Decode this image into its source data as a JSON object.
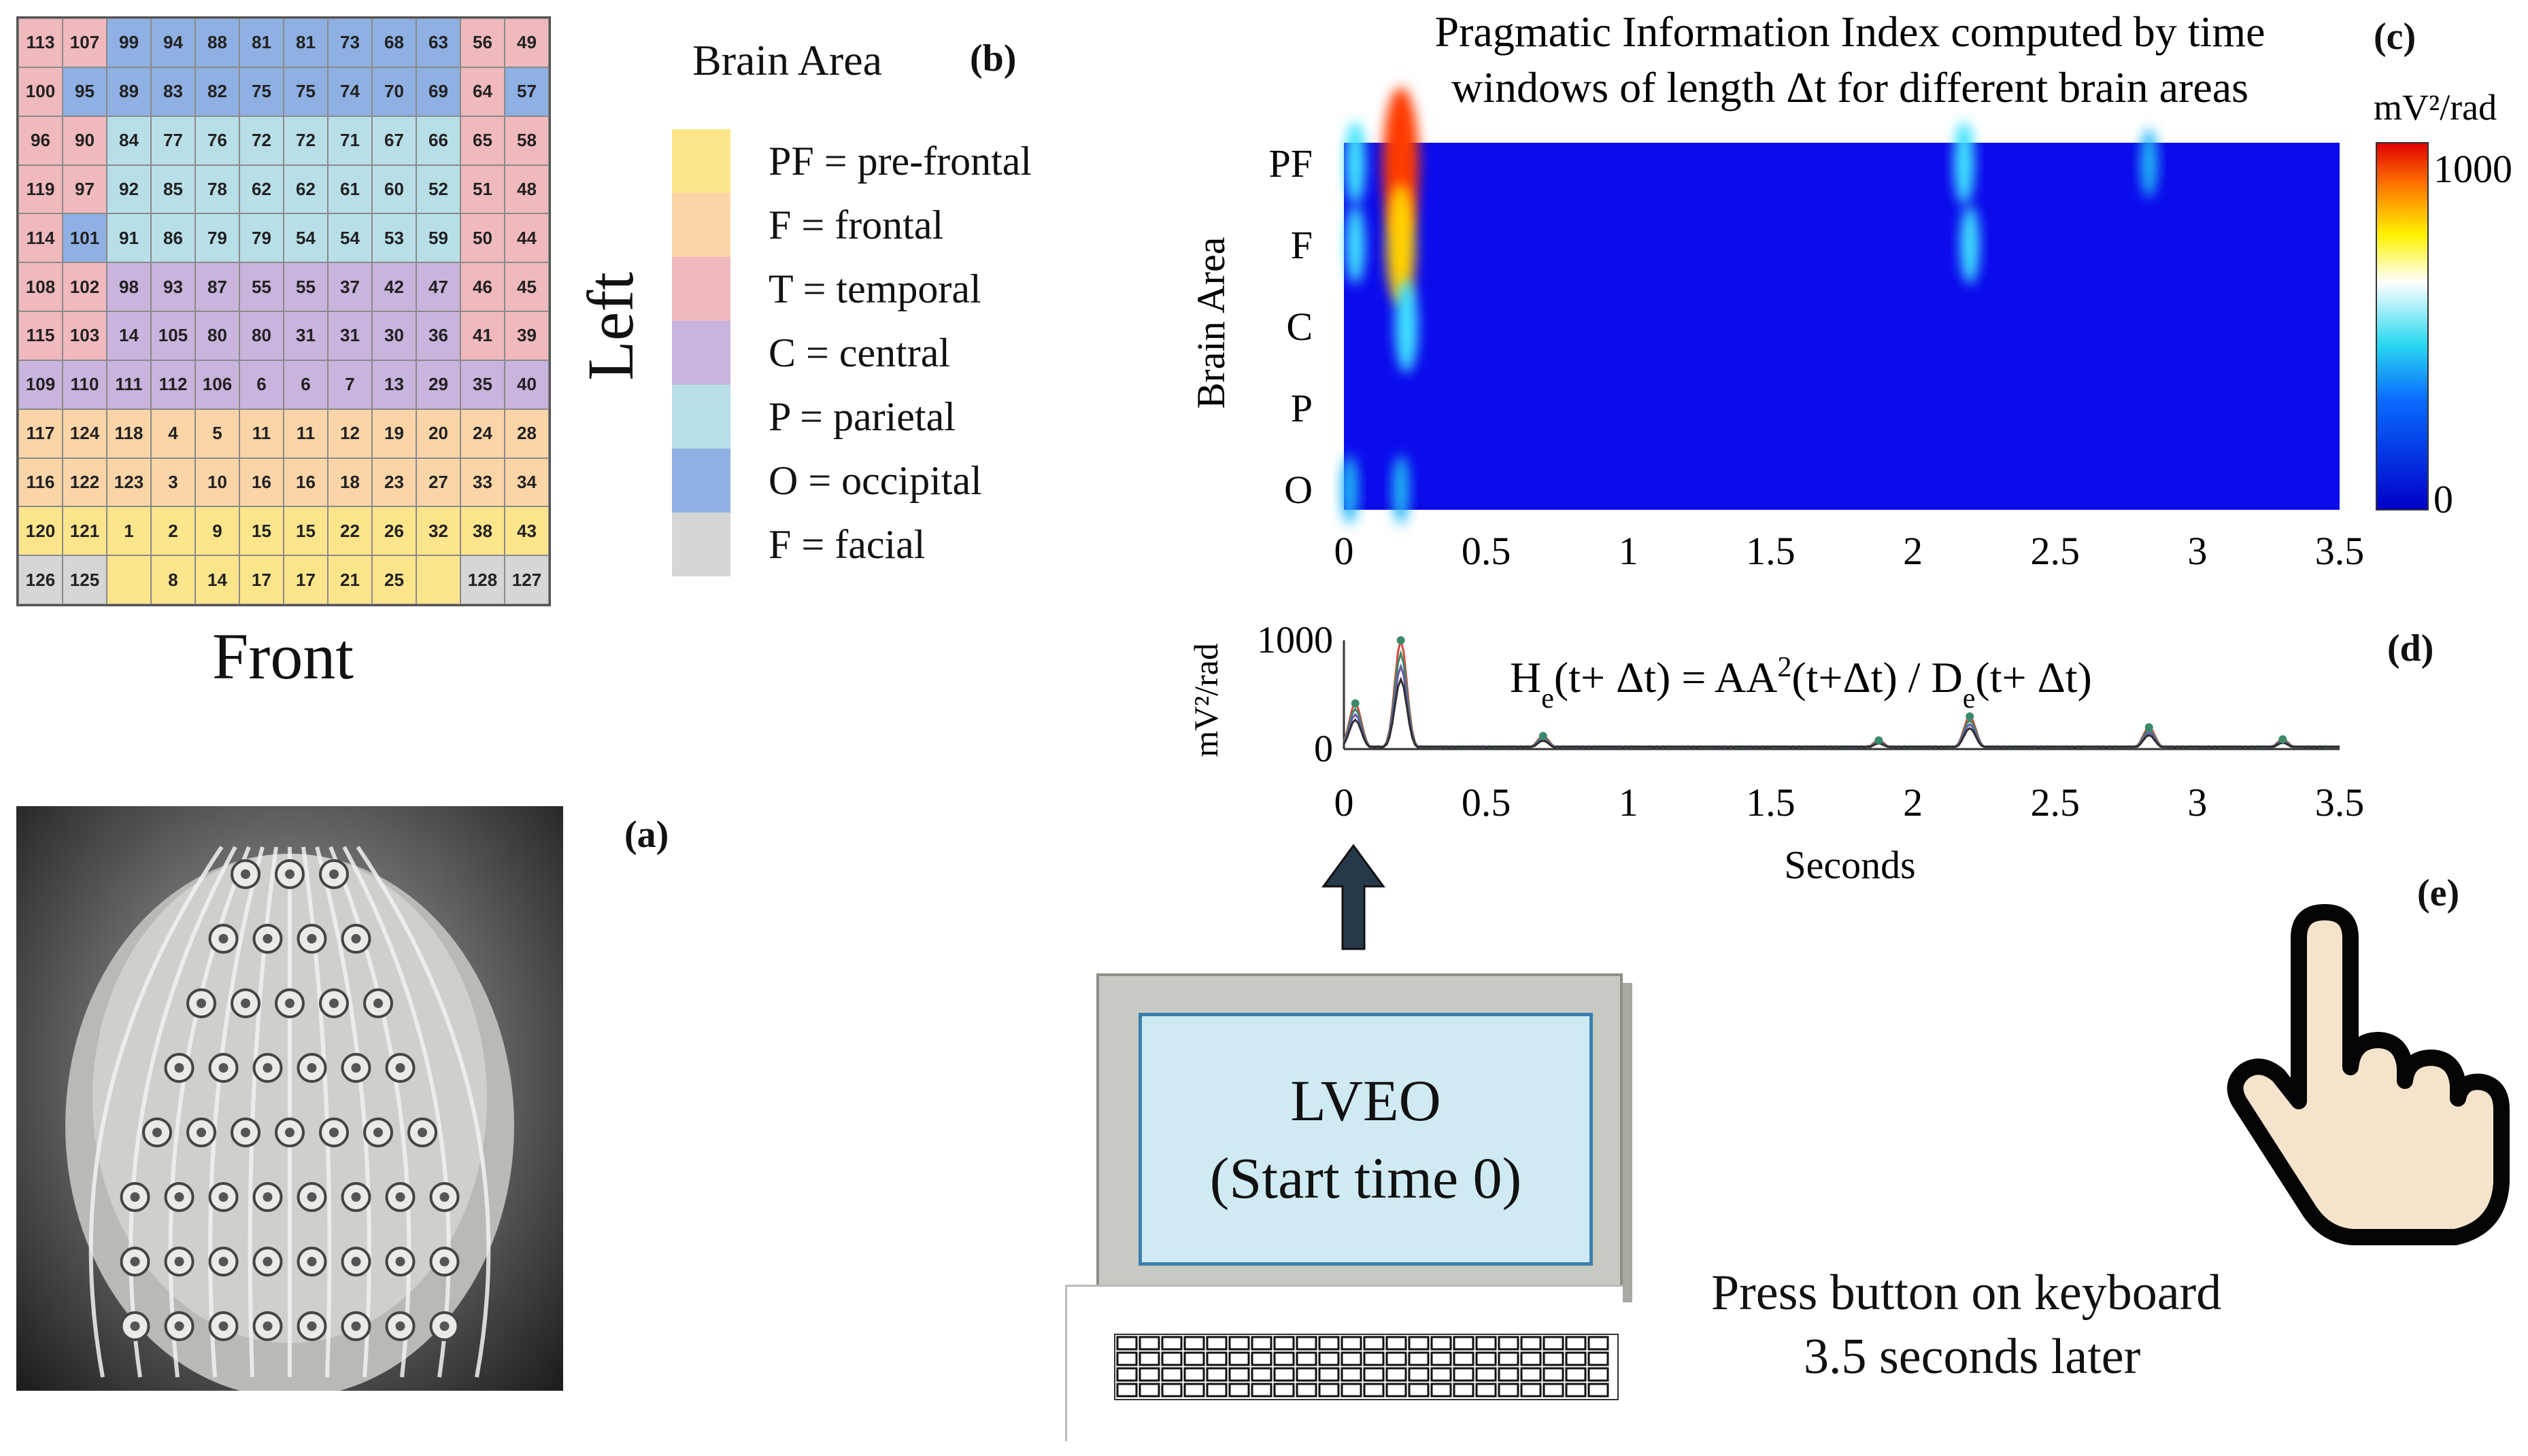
{
  "panels": {
    "a": "(a)",
    "b": "(b)",
    "c": "(c)",
    "d": "(d)",
    "e": "(e)"
  },
  "grid": {
    "side_label": "Left",
    "bottom_label": "Front",
    "colors": {
      "Y": "#fde58c",
      "O": "#fbd5a8",
      "R": "#f0b9bd",
      "V": "#c8b4dd",
      "C": "#b8dfe8",
      "B": "#8fb0e2",
      "G": "#d6d6d6",
      "W": "#ffffff"
    },
    "rows": [
      [
        "113",
        "107",
        "99",
        "94",
        "88",
        "81",
        "81",
        "73",
        "68",
        "63",
        "56",
        "49",
        ""
      ],
      [
        "100",
        "95",
        "89",
        "83",
        "82",
        "75",
        "75",
        "74",
        "70",
        "69",
        "64",
        "57",
        ""
      ],
      [
        "96",
        "90",
        "84",
        "77",
        "76",
        "72",
        "72",
        "71",
        "67",
        "66",
        "65",
        "58",
        ""
      ],
      [
        "119",
        "97",
        "92",
        "85",
        "78",
        "62",
        "62",
        "61",
        "60",
        "52",
        "51",
        "48",
        ""
      ],
      [
        "114",
        "101",
        "91",
        "86",
        "79",
        "79",
        "54",
        "54",
        "53",
        "59",
        "50",
        "44",
        ""
      ],
      [
        "108",
        "102",
        "98",
        "93",
        "87",
        "55",
        "55",
        "37",
        "42",
        "47",
        "46",
        "45",
        ""
      ],
      [
        "115",
        "103",
        "14",
        "105",
        "80",
        "80",
        "31",
        "31",
        "30",
        "36",
        "41",
        "39",
        ""
      ],
      [
        "109",
        "110",
        "111",
        "112",
        "106",
        "6",
        "6",
        "7",
        "13",
        "29",
        "35",
        "40",
        ""
      ],
      [
        "117",
        "124",
        "118",
        "4",
        "5",
        "11",
        "11",
        "12",
        "19",
        "20",
        "24",
        "28",
        ""
      ],
      [
        "116",
        "122",
        "123",
        "3",
        "10",
        "16",
        "16",
        "18",
        "23",
        "27",
        "33",
        "34",
        ""
      ],
      [
        "120",
        "121",
        "1",
        "2",
        "9",
        "15",
        "15",
        "22",
        "26",
        "32",
        "38",
        "43",
        ""
      ],
      [
        "126",
        "125",
        "",
        "8",
        "14",
        "17",
        "17",
        "21",
        "25",
        "",
        "128",
        "127",
        ""
      ]
    ],
    "color_rows": [
      "RRBBBBBBBBRR",
      "RBBBBBBBBBRB",
      "RRCCCCCCCCRR",
      "RRCCCCCCCCRR",
      "RBCCCCCCCCRR",
      "RRVVVVVVVVRR",
      "RRVVVVVVVVRR",
      "VVVVVVVVVVVV",
      "OOOOOOOOOOOO",
      "OOOOOOOOOOOO",
      "YYYYYYYYYYYY",
      "GGYYYYYYYYGG"
    ]
  },
  "legend": {
    "title": "Brain Area",
    "items": [
      {
        "text": "PF = pre-frontal",
        "color": "#fde58c"
      },
      {
        "text": "F = frontal",
        "color": "#fbd5a8"
      },
      {
        "text": "T = temporal",
        "color": "#f0b9bd"
      },
      {
        "text": "C = central",
        "color": "#c8b4dd"
      },
      {
        "text": "P = parietal",
        "color": "#b8dfe8"
      },
      {
        "text": "O = occipital",
        "color": "#8fb0e2"
      },
      {
        "text": "F = facial",
        "color": "#d6d6d6"
      }
    ]
  },
  "chart_data": [
    {
      "type": "heatmap",
      "title": "Pragmatic Information Index computed by time windows of length Δt for different brain areas",
      "title_lines": [
        "Pragmatic Information Index computed by time",
        "windows of length Δt for different brain areas"
      ],
      "ylabel": "Brain Area",
      "y_categories": [
        "PF",
        "F",
        "C",
        "P",
        "O"
      ],
      "x_ticks": [
        "0",
        "0.5",
        "1",
        "1.5",
        "2",
        "2.5",
        "3",
        "3.5"
      ],
      "xlim": [
        0,
        3.5
      ],
      "colorbar": {
        "unit": "mV²/rad",
        "max_label": "1000",
        "min_label": "0",
        "range": [
          0,
          1000
        ]
      },
      "hotspots": [
        {
          "t": 0.04,
          "area": "PF",
          "value": 300
        },
        {
          "t": 0.04,
          "area": "F",
          "value": 250
        },
        {
          "t": 0.2,
          "area": "PF",
          "value": 1000
        },
        {
          "t": 0.2,
          "area": "F",
          "value": 700
        },
        {
          "t": 0.22,
          "area": "C",
          "value": 400
        },
        {
          "t": 0.02,
          "area": "O",
          "value": 150
        },
        {
          "t": 0.2,
          "area": "O",
          "value": 150
        },
        {
          "t": 2.18,
          "area": "PF",
          "value": 300
        },
        {
          "t": 2.2,
          "area": "F",
          "value": 250
        },
        {
          "t": 2.83,
          "area": "PF",
          "value": 150
        }
      ]
    },
    {
      "type": "line",
      "title": "",
      "formula": "He(t+ Δt) = AA²(t+Δt) / De(t+ Δt)",
      "ylabel": "mV²/rad",
      "xlabel": "Seconds",
      "x_ticks": [
        "0",
        "0.5",
        "1",
        "1.5",
        "2",
        "2.5",
        "3",
        "3.5"
      ],
      "y_ticks": [
        "1000",
        "0"
      ],
      "xlim": [
        0,
        3.5
      ],
      "ylim": [
        0,
        1000
      ],
      "peaks": [
        {
          "t": 0.04,
          "value": 420
        },
        {
          "t": 0.2,
          "value": 1000
        },
        {
          "t": 0.7,
          "value": 120
        },
        {
          "t": 1.88,
          "value": 80
        },
        {
          "t": 2.2,
          "value": 300
        },
        {
          "t": 2.83,
          "value": 200
        },
        {
          "t": 3.3,
          "value": 90
        }
      ]
    }
  ],
  "monitor": {
    "line1": "LVEO",
    "line2": "(Start time 0)"
  },
  "press": {
    "line1": "Press button on keyboard",
    "line2": "3.5 seconds later"
  },
  "icons": {
    "arrow": "up-arrow-icon",
    "hand": "pointing-hand-icon"
  }
}
